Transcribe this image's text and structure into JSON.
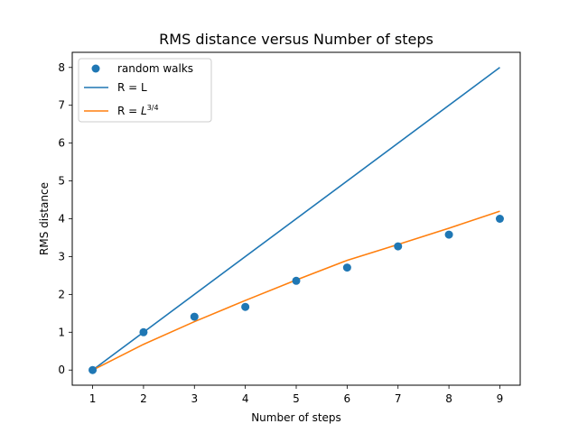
{
  "chart_data": {
    "type": "scatter",
    "title": "RMS distance versus Number of steps",
    "xlabel": "Number of steps",
    "ylabel": "RMS distance",
    "xlim": [
      0.6,
      9.4
    ],
    "ylim": [
      -0.4,
      8.4
    ],
    "xticks": [
      1,
      2,
      3,
      4,
      5,
      6,
      7,
      8,
      9
    ],
    "yticks": [
      0,
      1,
      2,
      3,
      4,
      5,
      6,
      7,
      8
    ],
    "grid": false,
    "legend_position": "top-left",
    "series": [
      {
        "name": "random walks",
        "kind": "scatter",
        "color": "#1f77b4",
        "x": [
          1,
          2,
          3,
          4,
          5,
          6,
          7,
          8,
          9
        ],
        "y": [
          0,
          1.0,
          1.41,
          1.67,
          2.36,
          2.71,
          3.27,
          3.58,
          4.0
        ]
      },
      {
        "name": "R = L",
        "kind": "line",
        "color": "#1f77b4",
        "x": [
          1,
          9
        ],
        "y": [
          0,
          8
        ]
      },
      {
        "name": "R = L^{3/4}",
        "kind": "line",
        "color": "#ff7f0e",
        "x": [
          1,
          2,
          3,
          4,
          5,
          6,
          7,
          8,
          9
        ],
        "y": [
          0,
          0.68,
          1.28,
          1.84,
          2.38,
          2.9,
          3.32,
          3.75,
          4.2
        ]
      }
    ]
  }
}
